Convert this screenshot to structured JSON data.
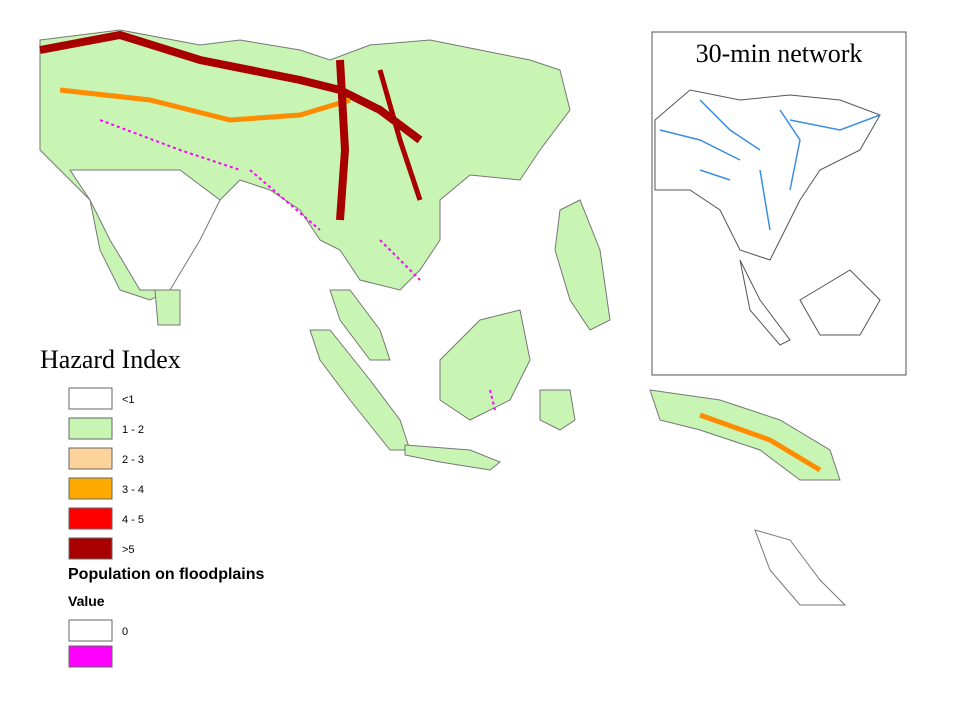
{
  "inset": {
    "title": "30-min network"
  },
  "legend": {
    "title": "Hazard Index",
    "items": [
      {
        "label": "<1",
        "color": "#ffffff"
      },
      {
        "label": "1 - 2",
        "color": "#c8f5b4"
      },
      {
        "label": "2 - 3",
        "color": "#fcd39a"
      },
      {
        "label": "3 - 4",
        "color": "#ffaa00"
      },
      {
        "label": "4 - 5",
        "color": "#ff0000"
      },
      {
        "label": ">5",
        "color": "#a80000"
      }
    ]
  },
  "population_legend": {
    "title": "Population on floodplains",
    "subtitle": "Value",
    "items": [
      {
        "label": "0",
        "color": "#ffffff"
      },
      {
        "color": "#ff00ff"
      }
    ]
  }
}
